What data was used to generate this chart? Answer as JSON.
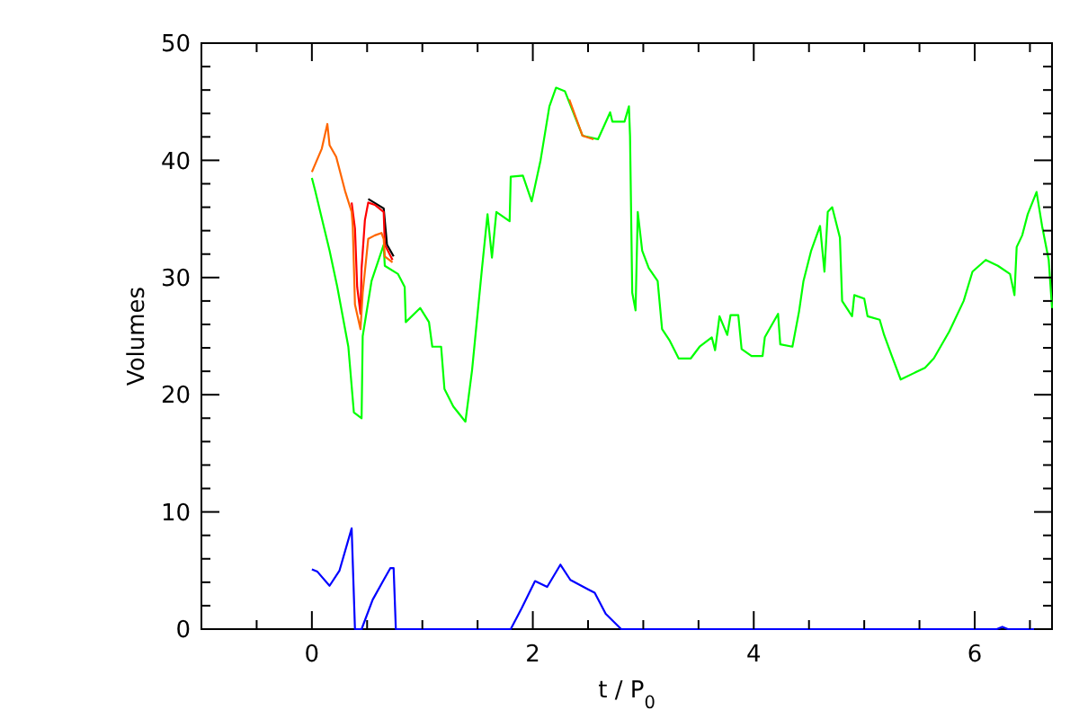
{
  "chart_data": {
    "type": "line",
    "xlabel": "t / P$_{0}$",
    "ylabel": "Volumes",
    "xlim": [
      -1,
      6.7
    ],
    "ylim": [
      0,
      50
    ],
    "xticks": [
      {
        "value": -0.5,
        "label": null
      },
      0,
      {
        "value": 0.5,
        "label": null
      },
      {
        "value": 1,
        "label": null
      },
      {
        "value": 1.5,
        "label": null
      },
      2,
      {
        "value": 2.5,
        "label": null
      },
      {
        "value": 3,
        "label": null
      },
      {
        "value": 3.5,
        "label": null
      },
      4,
      {
        "value": 4.5,
        "label": null
      },
      {
        "value": 5,
        "label": null
      },
      {
        "value": 5.5,
        "label": null
      },
      6,
      {
        "value": 6.5,
        "label": null
      }
    ],
    "yticks": [
      0,
      {
        "value": 2,
        "label": null
      },
      {
        "value": 4,
        "label": null
      },
      {
        "value": 6,
        "label": null
      },
      {
        "value": 8,
        "label": null
      },
      10,
      {
        "value": 12,
        "label": null
      },
      {
        "value": 14,
        "label": null
      },
      {
        "value": 16,
        "label": null
      },
      {
        "value": 18,
        "label": null
      },
      20,
      {
        "value": 22,
        "label": null
      },
      {
        "value": 24,
        "label": null
      },
      {
        "value": 26,
        "label": null
      },
      {
        "value": 28,
        "label": null
      },
      30,
      {
        "value": 32,
        "label": null
      },
      {
        "value": 34,
        "label": null
      },
      {
        "value": 36,
        "label": null
      },
      {
        "value": 38,
        "label": null
      },
      40,
      {
        "value": 42,
        "label": null
      },
      {
        "value": 44,
        "label": null
      },
      {
        "value": 46,
        "label": null
      },
      {
        "value": 48,
        "label": null
      },
      50
    ],
    "grid": false,
    "series": [
      {
        "color": "#00ff00",
        "x": [
          0,
          0.03,
          0.16,
          0.23,
          0.33,
          0.38,
          0.45,
          0.46,
          0.54,
          0.65,
          0.66,
          0.78,
          0.84,
          0.85,
          0.98,
          1.06,
          1.09,
          1.17,
          1.2,
          1.28,
          1.39,
          1.45,
          1.54,
          1.59,
          1.63,
          1.67,
          1.79,
          1.8,
          1.91,
          1.99,
          2.07,
          2.15,
          2.21,
          2.29,
          2.45,
          2.59,
          2.7,
          2.72,
          2.83,
          2.87,
          2.88,
          2.9,
          2.93,
          2.95,
          2.99,
          3.05,
          3.13,
          3.17,
          3.24,
          3.32,
          3.43,
          3.51,
          3.62,
          3.65,
          3.69,
          3.76,
          3.79,
          3.86,
          3.89,
          3.98,
          4.08,
          4.1,
          4.22,
          4.24,
          4.35,
          4.41,
          4.45,
          4.52,
          4.6,
          4.64,
          4.67,
          4.71,
          4.78,
          4.8,
          4.89,
          4.91,
          5.0,
          5.03,
          5.14,
          5.18,
          5.25,
          5.33,
          5.55,
          5.63,
          5.77,
          5.9,
          5.98,
          6.1,
          6.21,
          6.32,
          6.36,
          6.38,
          6.43,
          6.48,
          6.56,
          6.61,
          6.67,
          6.7
        ],
        "values": [
          38.5,
          37.4,
          32.3,
          29.2,
          24.1,
          18.5,
          18.0,
          25.0,
          29.7,
          32.8,
          31.0,
          30.3,
          29.2,
          26.2,
          27.4,
          26.2,
          24.1,
          24.1,
          20.5,
          19.0,
          17.7,
          22.1,
          30.8,
          35.4,
          31.7,
          35.6,
          34.8,
          38.6,
          38.7,
          36.5,
          40.0,
          44.6,
          46.2,
          45.9,
          42.1,
          41.8,
          44.1,
          43.3,
          43.3,
          44.6,
          42.1,
          28.7,
          27.2,
          35.6,
          32.3,
          30.8,
          29.7,
          25.6,
          24.6,
          23.1,
          23.1,
          24.1,
          24.9,
          23.8,
          26.7,
          25.1,
          26.8,
          26.8,
          23.9,
          23.3,
          23.3,
          24.9,
          26.9,
          24.3,
          24.1,
          27.1,
          29.7,
          32.3,
          34.4,
          30.5,
          35.6,
          36.0,
          33.4,
          28.0,
          26.7,
          28.5,
          28.2,
          26.7,
          26.4,
          25.1,
          23.3,
          21.3,
          22.3,
          23.1,
          25.4,
          28.0,
          30.5,
          31.5,
          31.0,
          30.3,
          28.5,
          32.6,
          33.6,
          35.4,
          37.3,
          34.4,
          31.5,
          27.4
        ]
      },
      {
        "color": "#000000",
        "x": [
          0.51,
          0.65,
          0.68,
          0.74
        ],
        "values": [
          36.7,
          35.9,
          32.8,
          31.8
        ]
      },
      {
        "color": "#ff0000",
        "x": [
          0.36,
          0.39,
          0.41,
          0.44,
          0.45,
          0.48,
          0.51,
          0.57,
          0.65,
          0.66,
          0.73
        ],
        "values": [
          36.4,
          34.2,
          29.2,
          26.9,
          30.8,
          34.9,
          36.4,
          36.2,
          35.6,
          32.8,
          31.5
        ]
      },
      {
        "color": "#ff6600",
        "x": [
          0,
          0.09,
          0.14,
          0.16,
          0.22,
          0.3,
          0.36,
          0.37,
          0.39,
          0.44,
          0.46,
          0.51,
          0.57,
          0.63,
          0.65,
          0.66,
          0.73,
          1.0,
          2.33,
          2.45,
          2.55
        ],
        "values": [
          39.0,
          41.0,
          43.1,
          41.3,
          40.3,
          37.4,
          35.6,
          34.4,
          27.7,
          25.6,
          28.7,
          33.3,
          33.6,
          33.8,
          33.3,
          31.8,
          31.3,
          null,
          45.2,
          42.1,
          41.8
        ]
      },
      {
        "color": "#0000ff",
        "x": [
          0,
          0.05,
          0.16,
          0.25,
          0.36,
          0.39,
          0.4,
          0.45,
          0.55,
          0.65,
          0.71,
          0.74,
          0.76,
          1.8,
          1.9,
          2.02,
          2.13,
          2.25,
          2.34,
          2.5,
          2.56,
          2.66,
          2.8,
          6.2,
          6.25,
          6.3,
          6.62
        ],
        "values": [
          5.1,
          4.9,
          3.7,
          5.0,
          8.6,
          0,
          0,
          0,
          2.5,
          4.2,
          5.2,
          5.2,
          0,
          0,
          1.8,
          4.1,
          3.6,
          5.5,
          4.2,
          3.4,
          3.1,
          1.3,
          0,
          0,
          0.2,
          0,
          0
        ]
      }
    ]
  }
}
